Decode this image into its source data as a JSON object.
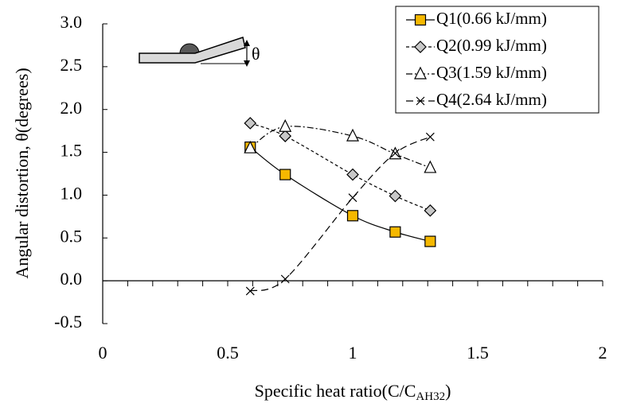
{
  "chart_data": {
    "type": "line",
    "ylabel": "Angular distortion, θ(degrees)",
    "xlabel_parts": [
      "Specific heat ratio(C/C",
      "AH32",
      ")"
    ],
    "inset_label": "θ",
    "xlim": [
      0,
      2
    ],
    "ylim": [
      -0.5,
      3.0
    ],
    "xticks": [
      0,
      0.5,
      1,
      1.5,
      2
    ],
    "xminorticks": [
      0.1,
      0.2,
      0.3,
      0.4,
      0.6,
      0.7,
      0.8,
      0.9,
      1.1,
      1.2,
      1.3,
      1.4,
      1.6,
      1.7,
      1.8,
      1.9
    ],
    "yticks": [
      {
        "value": -0.5,
        "label": "-0.5"
      },
      {
        "value": 0,
        "label": "0.0"
      },
      {
        "value": 0.5,
        "label": "0.5"
      },
      {
        "value": 1,
        "label": "1.0"
      },
      {
        "value": 1.5,
        "label": "1.5"
      },
      {
        "value": 2,
        "label": "2.0"
      },
      {
        "value": 2.5,
        "label": "2.5"
      },
      {
        "value": 3,
        "label": "3.0"
      }
    ],
    "legend_position": "upper right",
    "series": [
      {
        "name": "Q1(0.66 kJ/mm)",
        "color": "#f5b800",
        "marker": "square",
        "linestyle": "solid",
        "x": [
          0.59,
          0.73,
          1.0,
          1.17,
          1.31
        ],
        "values": [
          1.56,
          1.24,
          0.76,
          0.57,
          0.46
        ]
      },
      {
        "name": "Q2(0.99 kJ/mm)",
        "color": "#c8c8c8",
        "marker": "diamond",
        "linestyle": "dotted",
        "x": [
          0.59,
          0.73,
          1.0,
          1.17,
          1.31
        ],
        "values": [
          1.84,
          1.69,
          1.24,
          0.99,
          0.82
        ]
      },
      {
        "name": "Q3(1.59 kJ/mm)",
        "color": "#ffffff",
        "marker": "triangle",
        "linestyle": "dashdot",
        "x": [
          0.59,
          0.73,
          1.0,
          1.17,
          1.31
        ],
        "values": [
          1.55,
          1.8,
          1.69,
          1.48,
          1.32
        ]
      },
      {
        "name": "Q4(2.64 kJ/mm)",
        "color": "#000000",
        "marker": "x",
        "linestyle": "dashed",
        "x": [
          0.59,
          0.73,
          1.0,
          1.17,
          1.31
        ],
        "values": [
          -0.12,
          0.02,
          0.97,
          1.49,
          1.68
        ]
      }
    ]
  }
}
